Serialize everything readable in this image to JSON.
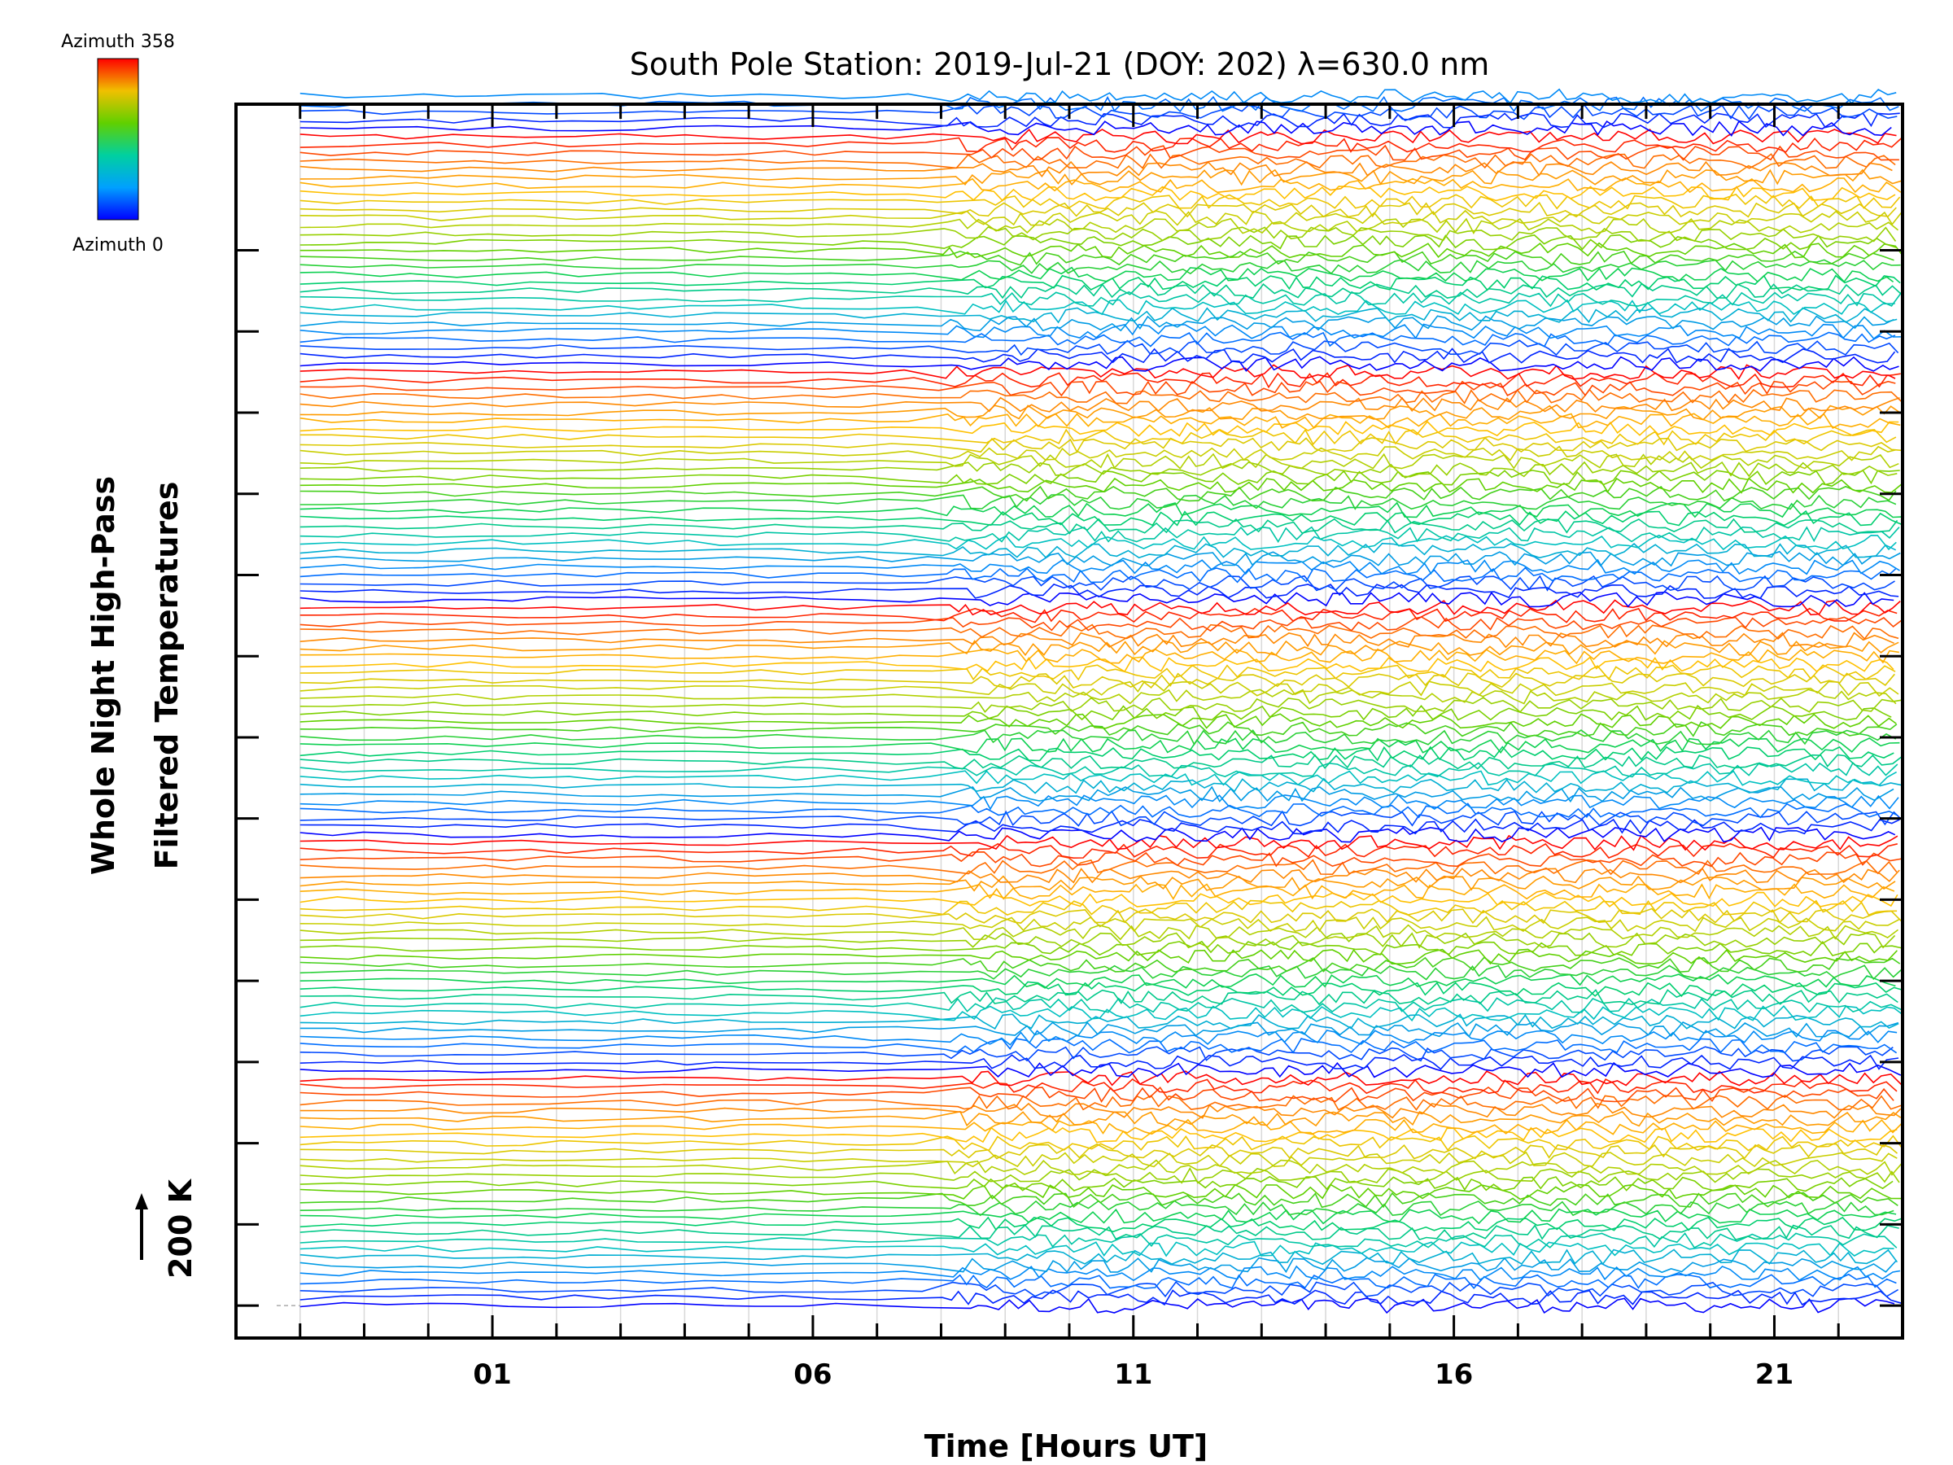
{
  "chart_data": {
    "type": "line",
    "title": "South Pole Station: 2019-Jul-21 (DOY: 202) λ=630.0 nm",
    "xlabel": "Time [Hours UT]",
    "ylabel": [
      "Whole Night High-Pass",
      "Filtered Temperatures"
    ],
    "scale_label": "200 K",
    "x_ticks": [
      "01",
      "06",
      "11",
      "16",
      "21"
    ],
    "x_tick_values": [
      1,
      6,
      11,
      16,
      21
    ],
    "xlim": [
      -3,
      23
    ],
    "data_x_range": [
      -2.0,
      23.0
    ],
    "colorbar": {
      "top_label": "Azimuth 358",
      "bottom_label": "Azimuth 0",
      "azimuth_range": [
        0,
        358
      ]
    },
    "n_stacked_traces": 150,
    "trace_spacing": 0.1,
    "ylim": [
      -0.4,
      14.8
    ],
    "y_major_ticks": 14,
    "colors": [
      "#0000ff",
      "#0080ff",
      "#00c0c0",
      "#00d060",
      "#60d000",
      "#c0d000",
      "#ffc000",
      "#ff8000",
      "#ff0000"
    ],
    "legend_placement": "top-left",
    "grid": "vertical"
  }
}
